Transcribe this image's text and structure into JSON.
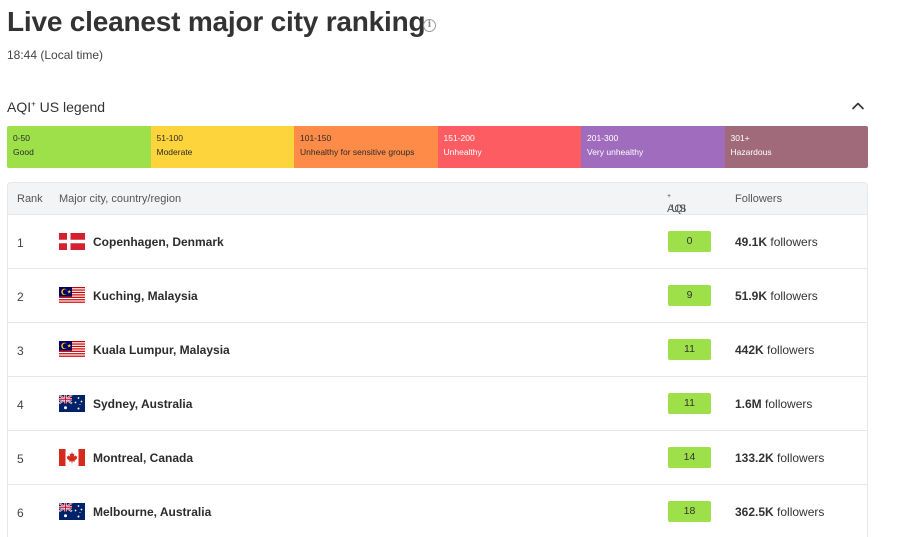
{
  "page": {
    "title": "Live cleanest major city ranking",
    "local_time": "18:44 (Local time)"
  },
  "legend": {
    "title": "AQI",
    "title_sup": "+",
    "title_suffix": " US legend",
    "segments": [
      {
        "range": "0-50",
        "label": "Good",
        "color": "#9ee04a",
        "text_color": "#2b2b2b"
      },
      {
        "range": "51-100",
        "label": "Moderate",
        "color": "#fed43c",
        "text_color": "#2b2b2b"
      },
      {
        "range": "101-150",
        "label": "Unhealthy for sensitive groups",
        "color": "#fe8c48",
        "text_color": "#2b2b2b"
      },
      {
        "range": "151-200",
        "label": "Unhealthy",
        "color": "#fd5d62",
        "text_color": "#ffffff"
      },
      {
        "range": "201-300",
        "label": "Very unhealthy",
        "color": "#a06cbe",
        "text_color": "#ffffff"
      },
      {
        "range": "301+",
        "label": "Hazardous",
        "color": "#a06a7a",
        "text_color": "#ffffff"
      }
    ]
  },
  "table": {
    "headers": {
      "rank": "Rank",
      "city": "Major city, country/region",
      "aqi": "AQI",
      "aqi_sup": "+",
      "aqi_suffix": " US",
      "followers": "Followers"
    },
    "followers_word": "followers",
    "rows": [
      {
        "rank": "1",
        "city": "Copenhagen, Denmark",
        "flag": "denmark-flag-icon",
        "aqi": "0",
        "followers": "49.1K"
      },
      {
        "rank": "2",
        "city": "Kuching, Malaysia",
        "flag": "malaysia-flag-icon",
        "aqi": "9",
        "followers": "51.9K"
      },
      {
        "rank": "3",
        "city": "Kuala Lumpur, Malaysia",
        "flag": "malaysia-flag-icon",
        "aqi": "11",
        "followers": "442K"
      },
      {
        "rank": "4",
        "city": "Sydney, Australia",
        "flag": "australia-flag-icon",
        "aqi": "11",
        "followers": "1.6M"
      },
      {
        "rank": "5",
        "city": "Montreal, Canada",
        "flag": "canada-flag-icon",
        "aqi": "14",
        "followers": "133.2K"
      },
      {
        "rank": "6",
        "city": "Melbourne, Australia",
        "flag": "australia-flag-icon",
        "aqi": "18",
        "followers": "362.5K"
      }
    ]
  },
  "colors": {
    "good": "#9ee04a",
    "header_bg": "#f3f4f6"
  }
}
